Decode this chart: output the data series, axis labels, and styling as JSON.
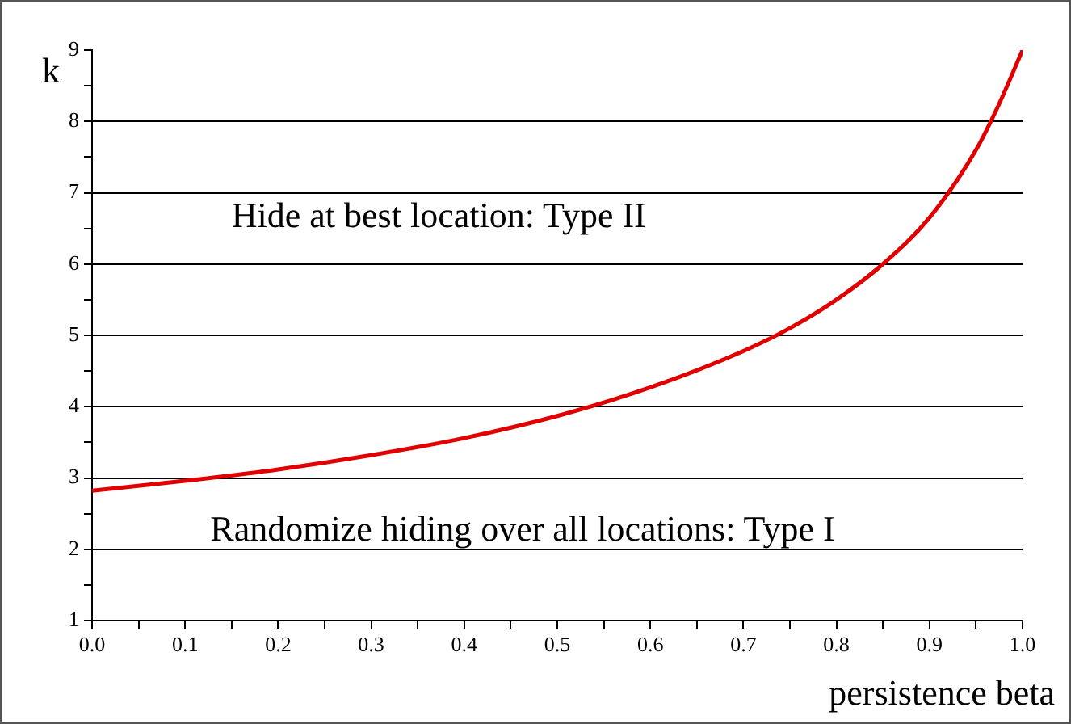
{
  "chart_data": {
    "type": "line",
    "xlabel": "persistence beta",
    "ylabel": "k",
    "annotations": [
      "Hide at best location: Type II",
      "Randomize hiding over all locations: Type I"
    ],
    "x": [
      0,
      0.1,
      0.2,
      0.3,
      0.4,
      0.5,
      0.6,
      0.7,
      0.75,
      0.8,
      0.85,
      0.9,
      0.95,
      0.975,
      1.0
    ],
    "series": [
      {
        "color": "#e00000",
        "values": [
          2.82,
          2.96,
          3.12,
          3.32,
          3.56,
          3.87,
          4.27,
          4.78,
          5.1,
          5.5,
          6.0,
          6.65,
          7.6,
          8.25,
          9.0
        ]
      }
    ],
    "xlim": [
      0,
      1
    ],
    "ylim": [
      1,
      9
    ],
    "xticks": [
      {
        "value": 0,
        "label": "0.0"
      },
      {
        "value": 0.05,
        "label": null
      },
      {
        "value": 0.1,
        "label": "0.1"
      },
      {
        "value": 0.15,
        "label": null
      },
      {
        "value": 0.2,
        "label": "0.2"
      },
      {
        "value": 0.25,
        "label": null
      },
      {
        "value": 0.3,
        "label": "0.3"
      },
      {
        "value": 0.35,
        "label": null
      },
      {
        "value": 0.4,
        "label": "0.4"
      },
      {
        "value": 0.45,
        "label": null
      },
      {
        "value": 0.5,
        "label": "0.5"
      },
      {
        "value": 0.55,
        "label": null
      },
      {
        "value": 0.6,
        "label": "0.6"
      },
      {
        "value": 0.65,
        "label": null
      },
      {
        "value": 0.7,
        "label": "0.7"
      },
      {
        "value": 0.75,
        "label": null
      },
      {
        "value": 0.8,
        "label": "0.8"
      },
      {
        "value": 0.85,
        "label": null
      },
      {
        "value": 0.9,
        "label": "0.9"
      },
      {
        "value": 0.95,
        "label": null
      },
      {
        "value": 1,
        "label": "1.0"
      }
    ],
    "yticks": [
      1,
      {
        "value": 1.5,
        "label": null
      },
      2,
      {
        "value": 2.5,
        "label": null
      },
      3,
      {
        "value": 3.5,
        "label": null
      },
      4,
      {
        "value": 4.5,
        "label": null
      },
      5,
      {
        "value": 5.5,
        "label": null
      },
      6,
      {
        "value": 6.5,
        "label": null
      },
      7,
      {
        "value": 7.5,
        "label": null
      },
      8,
      {
        "value": 8.5,
        "label": null
      },
      9
    ],
    "grid": "y",
    "legend": false,
    "marker": "none",
    "line_style": "solid"
  }
}
